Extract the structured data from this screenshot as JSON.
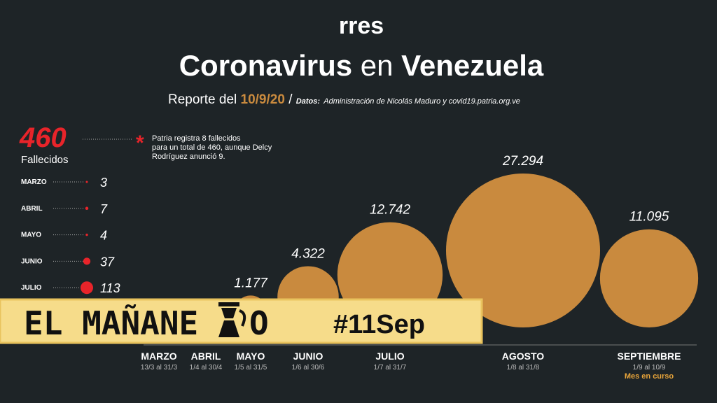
{
  "header": {
    "logo": "rres",
    "title_bold1": "Coronavirus",
    "title_light": "en",
    "title_bold2": "Venezuela",
    "report_prefix": "Reporte del",
    "report_date": "10/9/20",
    "source_prefix": "/",
    "source_label": "Datos:",
    "source_text": "Administración de Nicolás Maduro y covid19.patria.org.ve"
  },
  "banner": {
    "text_before": "EL MAÑANE",
    "text_after": "O",
    "hashtag": "#11Sep"
  },
  "chart_data": [
    {
      "type": "dot",
      "total": 460,
      "total_label": "Fallecidos",
      "note_lines": [
        "Patria registra 8 fallecidos",
        "para un total de 460, aunque Delcy",
        "Rodríguez anunció 9."
      ],
      "categories": [
        "MARZO",
        "ABRIL",
        "MAYO",
        "JUNIO",
        "JULIO"
      ],
      "values": [
        3,
        7,
        4,
        37,
        113
      ],
      "color": "#e8242a"
    },
    {
      "type": "bubble",
      "categories": [
        "MARZO",
        "ABRIL",
        "MAYO",
        "JUNIO",
        "JULIO",
        "AGOSTO",
        "SEPTIEMBRE"
      ],
      "ranges": [
        "13/3 al 31/3",
        "1/4 al 30/4",
        "1/5 al 31/5",
        "1/6 al 30/6",
        "1/7 al 31/7",
        "1/8 al 31/8",
        "1/9 al 10/9"
      ],
      "values": [
        null,
        null,
        1177,
        4322,
        12742,
        27294,
        11095
      ],
      "value_labels": [
        null,
        null,
        "1.177",
        "4.322",
        "12.742",
        "27.294",
        "11.095"
      ],
      "footnote": "Mes en curso",
      "color": "#c98a3e"
    }
  ]
}
